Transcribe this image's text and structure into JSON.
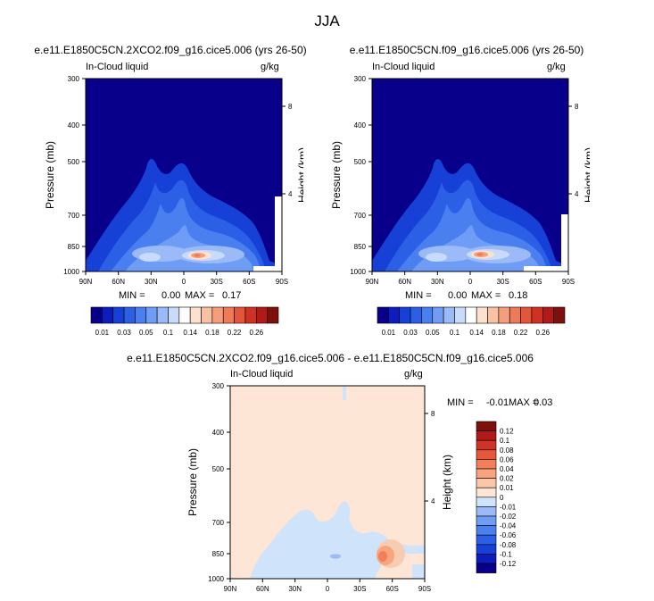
{
  "figure": {
    "title": "JJA"
  },
  "colors": {
    "ramp_abs": [
      "#08008a",
      "#0c1cbd",
      "#1640d6",
      "#2a5fe6",
      "#4a7ff0",
      "#6f9cf4",
      "#9bbaf7",
      "#c9dbfb",
      "#fefefe",
      "#fde1cf",
      "#f9c1a3",
      "#f59e7b",
      "#ef7a57",
      "#e4553a",
      "#cf3224",
      "#b21a17",
      "#7d0f0d"
    ],
    "ramp_diff": [
      "#08008a",
      "#0c1cbd",
      "#1640d6",
      "#2a5fe6",
      "#4a7ff0",
      "#6f9cf4",
      "#9bbaf7",
      "#cfe3fb",
      "#fde6d5",
      "#fbc7a8",
      "#f8a47e",
      "#f27f59",
      "#e6583a",
      "#cf3325",
      "#b11a17",
      "#7d0f0d"
    ]
  },
  "chart_data": [
    {
      "id": "panel-left",
      "type": "heatmap",
      "title": "e.e11.E1850C5CN.2XCO2.f09_g16.cice5.006 (yrs 26-50)",
      "left_string": "In-Cloud liquid",
      "right_string": "g/kg",
      "xlabel": "",
      "ylabel": "Pressure (mb)",
      "y2label": "Height (km)",
      "xlim": [
        90,
        -90
      ],
      "ylim": [
        1000,
        300
      ],
      "x_ticks": [
        "90N",
        "60N",
        "30N",
        "0",
        "30S",
        "60S",
        "90S"
      ],
      "y_ticks": [
        "1000",
        "850",
        "700",
        "500",
        "400",
        "300"
      ],
      "y2_ticks": [
        "4",
        "8"
      ],
      "min_label": "MIN =",
      "min_value": "0.00",
      "max_label": "MAX =",
      "max_value": "0.17",
      "colorbar": {
        "orientation": "horizontal",
        "levels": [
          0.01,
          0.02,
          0.03,
          0.04,
          0.05,
          0.06,
          0.08,
          0.1,
          0.12,
          0.14,
          0.16,
          0.18,
          0.2,
          0.22,
          0.24,
          0.26
        ],
        "labels": [
          "0.01",
          "0.03",
          "0.05",
          "0.1",
          "0.14",
          "0.18",
          "0.22",
          "0.26"
        ]
      }
    },
    {
      "id": "panel-right",
      "type": "heatmap",
      "title": "e.e11.E1850C5CN.f09_g16.cice5.006 (yrs 26-50)",
      "left_string": "In-Cloud liquid",
      "right_string": "g/kg",
      "xlabel": "",
      "ylabel": "Pressure (mb)",
      "y2label": "Height (km)",
      "xlim": [
        90,
        -90
      ],
      "ylim": [
        1000,
        300
      ],
      "x_ticks": [
        "90N",
        "60N",
        "30N",
        "0",
        "30S",
        "60S",
        "90S"
      ],
      "y_ticks": [
        "1000",
        "850",
        "700",
        "500",
        "400",
        "300"
      ],
      "y2_ticks": [
        "4",
        "8"
      ],
      "min_label": "MIN =",
      "min_value": "0.00",
      "max_label": "MAX =",
      "max_value": "0.18",
      "colorbar": {
        "orientation": "horizontal",
        "levels": [
          0.01,
          0.02,
          0.03,
          0.04,
          0.05,
          0.06,
          0.08,
          0.1,
          0.12,
          0.14,
          0.16,
          0.18,
          0.2,
          0.22,
          0.24,
          0.26
        ],
        "labels": [
          "0.01",
          "0.03",
          "0.05",
          "0.1",
          "0.14",
          "0.18",
          "0.22",
          "0.26"
        ]
      }
    },
    {
      "id": "panel-diff",
      "type": "heatmap",
      "title": "e.e11.E1850C5CN.2XCO2.f09_g16.cice5.006 - e.e11.E1850C5CN.f09_g16.cice5.006",
      "left_string": "In-Cloud liquid",
      "right_string": "g/kg",
      "xlabel": "",
      "ylabel": "Pressure (mb)",
      "y2label": "Height (km)",
      "xlim": [
        90,
        -90
      ],
      "ylim": [
        1000,
        300
      ],
      "x_ticks": [
        "90N",
        "60N",
        "30N",
        "0",
        "30S",
        "60S",
        "90S"
      ],
      "y_ticks": [
        "1000",
        "850",
        "700",
        "500",
        "400",
        "300"
      ],
      "y2_ticks": [
        "4",
        "8"
      ],
      "min_label": "MIN =",
      "min_value": "-0.01",
      "max_label": "MAX =",
      "max_value": "0.03",
      "colorbar": {
        "orientation": "vertical",
        "labels": [
          "0.12",
          "0.1",
          "0.08",
          "0.06",
          "0.04",
          "0.02",
          "0.01",
          "0",
          "-0.01",
          "-0.02",
          "-0.04",
          "-0.06",
          "-0.08",
          "-0.1",
          "-0.12"
        ]
      }
    }
  ]
}
